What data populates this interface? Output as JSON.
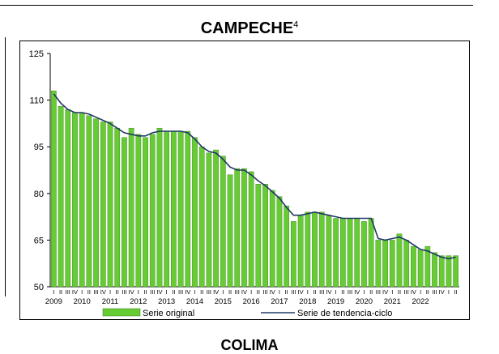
{
  "page": {
    "title_main": "CAMPECHE",
    "title_sup": "4",
    "next_title": "COLIMA"
  },
  "chart_data": {
    "type": "bar",
    "title": "CAMPECHE",
    "xlabel": "",
    "ylabel": "",
    "ylim": [
      50,
      125
    ],
    "yticks": [
      50,
      65,
      80,
      95,
      110,
      125
    ],
    "grid": false,
    "legend_position": "bottom",
    "quarter_labels": [
      "I",
      "II",
      "III",
      "IV"
    ],
    "years": [
      "2009",
      "2010",
      "2011",
      "2012",
      "2013",
      "2014",
      "2015",
      "2016",
      "2017",
      "2018",
      "2019",
      "2020",
      "2021",
      "2022"
    ],
    "series": [
      {
        "name": "Serie original",
        "type": "bar",
        "color": "#66cc33",
        "values": [
          113,
          108,
          107,
          106,
          106,
          105,
          104,
          103,
          103,
          101,
          98,
          101,
          99,
          98,
          99,
          101,
          100,
          100,
          100,
          100,
          98,
          95,
          93,
          94,
          92,
          86,
          88,
          88,
          87,
          83,
          83,
          81,
          79,
          76,
          71,
          73,
          74,
          74,
          74,
          73,
          72,
          72,
          72,
          72,
          71,
          72,
          65,
          65,
          65,
          67,
          65,
          63,
          62,
          63,
          61,
          60,
          60,
          60
        ]
      },
      {
        "name": "Serie de tendencia-ciclo",
        "type": "line",
        "color": "#1f3864",
        "values": [
          112,
          109,
          107,
          106,
          106,
          105.5,
          104.5,
          103.5,
          102.5,
          101,
          99.5,
          99,
          98.5,
          98.5,
          99.5,
          100,
          100,
          100,
          100,
          99.5,
          97.5,
          95,
          93.5,
          93,
          91,
          88.5,
          87.5,
          87.5,
          86,
          84,
          82.5,
          80.5,
          78.5,
          75.5,
          73,
          73,
          73.5,
          74,
          73.5,
          73,
          72.5,
          72,
          72,
          72,
          72,
          72,
          65.5,
          65,
          65.5,
          66,
          65,
          63.5,
          62,
          61.5,
          60.5,
          59.5,
          59,
          59.5
        ]
      }
    ]
  }
}
